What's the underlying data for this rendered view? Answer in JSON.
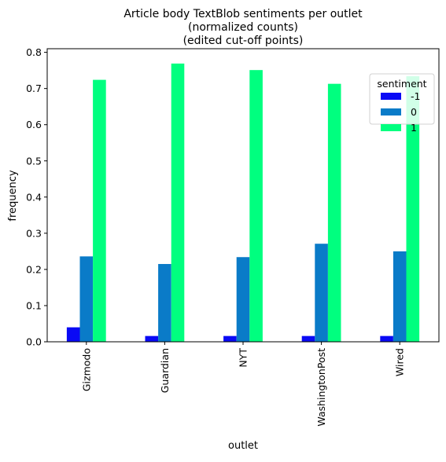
{
  "chart_data": {
    "type": "bar",
    "title_lines": [
      "Article body TextBlob sentiments per outlet",
      "(normalized counts)",
      "(edited cut-off points)"
    ],
    "xlabel": "outlet",
    "ylabel": "frequency",
    "categories": [
      "Gizmodo",
      "Guardian",
      "NYT",
      "WashingtonPost",
      "Wired"
    ],
    "ylim": [
      0,
      0.81
    ],
    "yticks": [
      "0.0",
      "0.1",
      "0.2",
      "0.3",
      "0.4",
      "0.5",
      "0.6",
      "0.7",
      "0.8"
    ],
    "grid": false,
    "legend": {
      "title": "sentiment",
      "placement": "top-right"
    },
    "series": [
      {
        "name": "-1",
        "color": "#0a0af5",
        "values": [
          0.04,
          0.016,
          0.016,
          0.016,
          0.016
        ]
      },
      {
        "name": "0",
        "color": "#0a7bc8",
        "values": [
          0.236,
          0.215,
          0.234,
          0.271,
          0.25
        ]
      },
      {
        "name": "1",
        "color": "#00ff7f",
        "values": [
          0.724,
          0.769,
          0.751,
          0.713,
          0.734
        ]
      }
    ]
  }
}
